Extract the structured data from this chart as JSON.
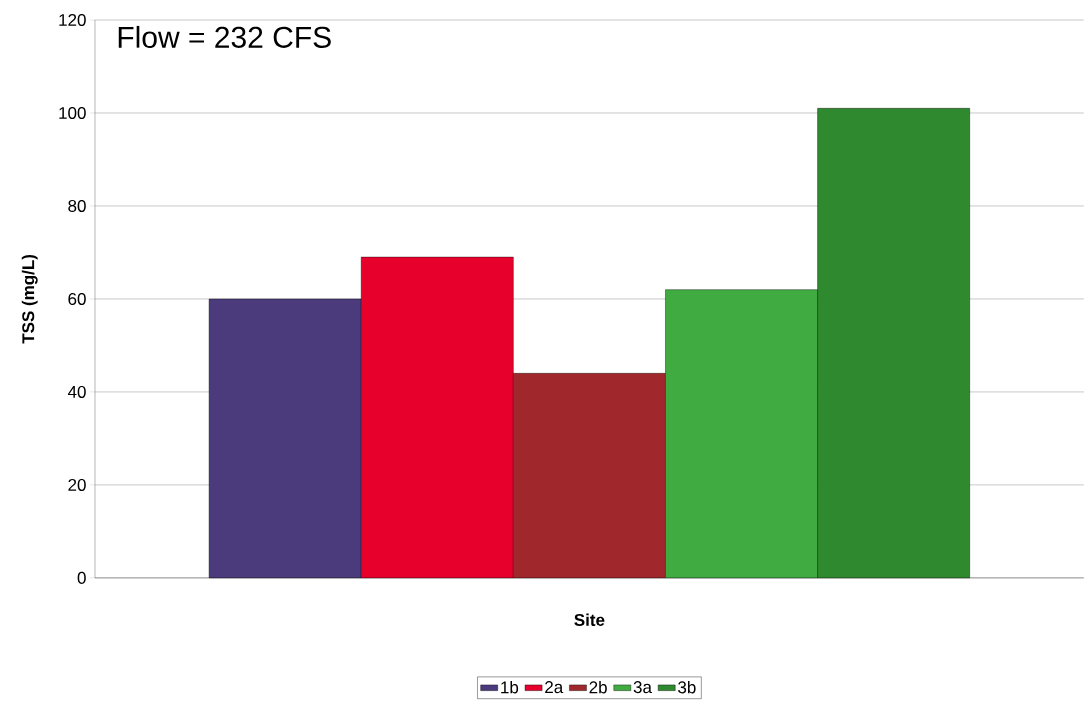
{
  "chart_data": {
    "type": "bar",
    "title": "Flow = 232 CFS",
    "xlabel": "Site",
    "ylabel": "TSS (mg/L)",
    "categories": [
      null
    ],
    "series": [
      {
        "name": "1b",
        "color": "#4b3b7c",
        "values": [
          60
        ]
      },
      {
        "name": "2a",
        "color": "#e6002b",
        "values": [
          69
        ]
      },
      {
        "name": "2b",
        "color": "#a0282c",
        "values": [
          44
        ]
      },
      {
        "name": "3a",
        "color": "#40ab40",
        "values": [
          62
        ]
      },
      {
        "name": "3b",
        "color": "#2f8a2f",
        "values": [
          101
        ]
      }
    ],
    "ylim": [
      0,
      120
    ],
    "yticks": [
      0,
      20,
      40,
      60,
      80,
      100,
      120
    ],
    "grid": "y",
    "legend": "bottom"
  }
}
